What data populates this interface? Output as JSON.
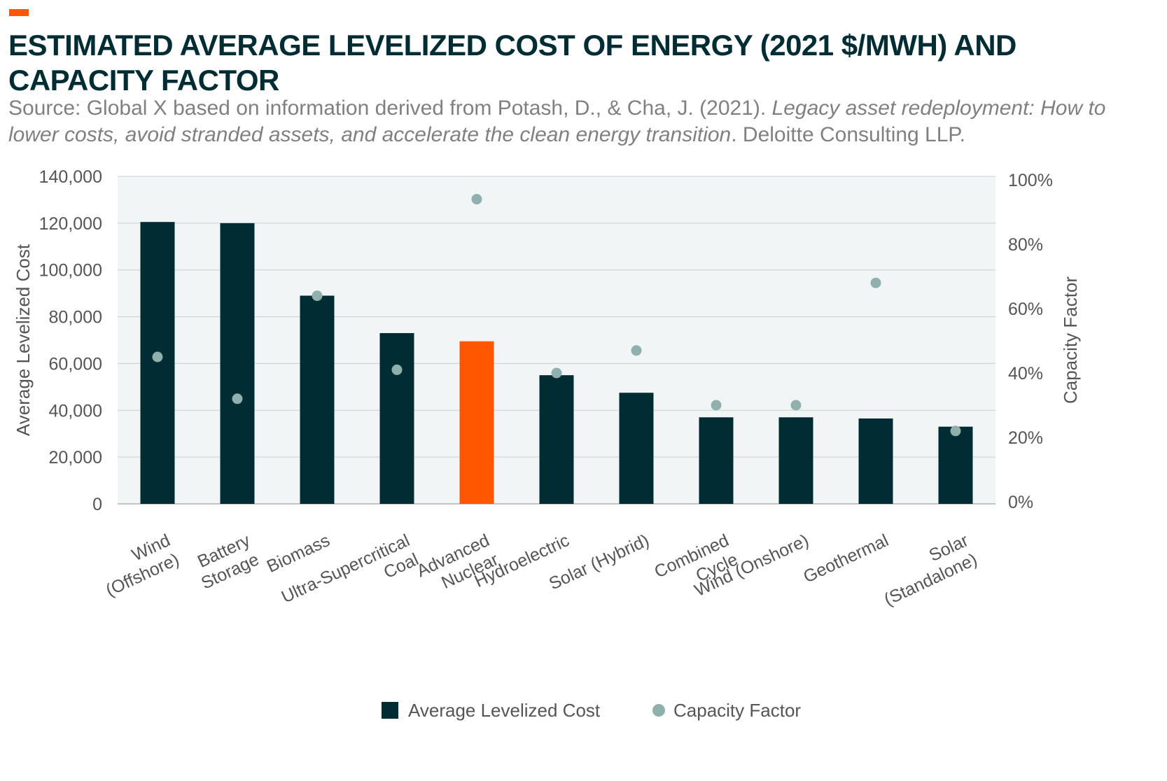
{
  "header": {
    "title": "ESTIMATED AVERAGE LEVELIZED COST OF ENERGY (2021 $/Mwh) AND CAPACITY FACTOR",
    "source_prefix": "Source: Global X based on information derived from Potash, D., & Cha, J. (2021). ",
    "source_italic": "Legacy asset redeployment: How to lower costs, avoid stranded assets, and accelerate the clean energy transition",
    "source_suffix": ". Deloitte Consulting LLP."
  },
  "colors": {
    "accent": "#ff5700",
    "bar": "#002c33",
    "highlight_bar": "#ff5700",
    "dot": "#8fb0ad",
    "plot_bg": "#f2f5f6",
    "gridline": "#c9cfd1",
    "title": "#002c33"
  },
  "chart_data": {
    "type": "bar",
    "title": "ESTIMATED AVERAGE LEVELIZED COST OF ENERGY (2021 $/Mwh) AND CAPACITY FACTOR",
    "categories": [
      "Wind (Offshore)",
      "Battery Storage",
      "Biomass",
      "Ultra-Supercritical Coal",
      "Advanced Nuclear",
      "Hydroelectric",
      "Solar (Hybrid)",
      "Combined Cycle",
      "Wind (Onshore)",
      "Geothermal",
      "Solar (Standalone)"
    ],
    "category_label_lines": [
      [
        "Wind",
        "(Offshore)"
      ],
      [
        "Battery",
        "Storage"
      ],
      [
        "Biomass"
      ],
      [
        "Ultra-Supercritical",
        "Coal"
      ],
      [
        "Advanced",
        "Nuclear"
      ],
      [
        "Hydroelectric"
      ],
      [
        "Solar (Hybrid)"
      ],
      [
        "Combined",
        "Cycle"
      ],
      [
        "Wind (Onshore)"
      ],
      [
        "Geothermal"
      ],
      [
        "Solar",
        "(Standalone)"
      ]
    ],
    "highlight_index": 4,
    "series": [
      {
        "name": "Average Levelized Cost",
        "type": "bar",
        "axis": "left",
        "values": [
          120500,
          120000,
          89000,
          73000,
          69500,
          55000,
          47500,
          37000,
          37000,
          36500,
          33000
        ]
      },
      {
        "name": "Capacity Factor",
        "type": "scatter",
        "axis": "right",
        "values": [
          0.45,
          0.32,
          0.64,
          0.41,
          0.94,
          0.4,
          0.47,
          0.3,
          0.3,
          0.68,
          0.22
        ]
      }
    ],
    "ylabel": "Average Levelized Cost",
    "ylim": [
      0,
      140000
    ],
    "yticks": [
      0,
      20000,
      40000,
      60000,
      80000,
      100000,
      120000,
      140000
    ],
    "ytick_labels": [
      "0",
      "20,000",
      "40,000",
      "60,000",
      "80,000",
      "100,000",
      "120,000",
      "140,000"
    ],
    "y2label": "Capacity Factor",
    "y2lim": [
      0,
      1
    ],
    "y2ticks": [
      0,
      0.2,
      0.4,
      0.6,
      0.8,
      1.0
    ],
    "y2tick_labels": [
      "0%",
      "20%",
      "40%",
      "60%",
      "80%",
      "100%"
    ],
    "grid": true,
    "legend_position": "bottom"
  },
  "legend": {
    "items": [
      {
        "label": "Average Levelized Cost",
        "kind": "bar"
      },
      {
        "label": "Capacity Factor",
        "kind": "dot"
      }
    ]
  }
}
